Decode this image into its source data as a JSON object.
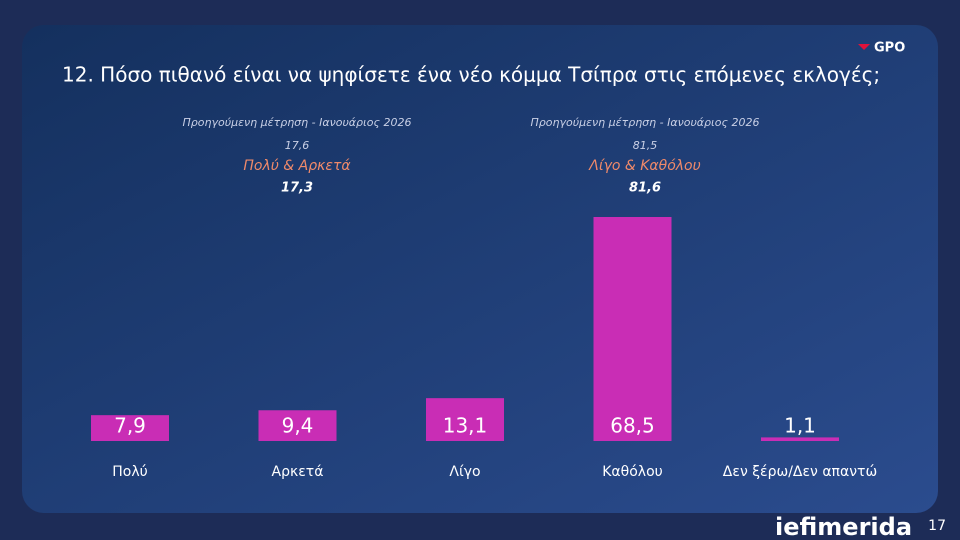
{
  "chart_data": {
    "type": "bar",
    "title": "12. Πόσο πιθανό είναι να ψηφίσετε ένα νέο κόμμα Τσίπρα στις επόμενες εκλογές;",
    "categories": [
      "Πολύ",
      "Αρκετά",
      "Λίγο",
      "Καθόλου",
      "Δεν ξέρω/Δεν απαντώ"
    ],
    "values": [
      7.9,
      9.4,
      13.1,
      68.5,
      1.1
    ],
    "value_labels": [
      "7,9",
      "9,4",
      "13,1",
      "68,5",
      "1,1"
    ],
    "color": "#c92db5",
    "annotations": [
      {
        "note": "Προηγούμενη μέτρηση - Ιανουάριος 2026",
        "previous": {
          "value": 17.6,
          "label": "17,6"
        },
        "group": "Πολύ & Αρκετά",
        "total": {
          "value": 17.3,
          "label": "17,3"
        }
      },
      {
        "note": "Προηγούμενη μέτρηση - Ιανουάριος 2026",
        "previous": {
          "value": 81.5,
          "label": "81,5"
        },
        "group": "Λίγο & Καθόλου",
        "total": {
          "value": 81.6,
          "label": "81,6"
        }
      }
    ]
  },
  "slide": {
    "logo": "GPO",
    "brand": "iefimerida",
    "page": "17"
  }
}
